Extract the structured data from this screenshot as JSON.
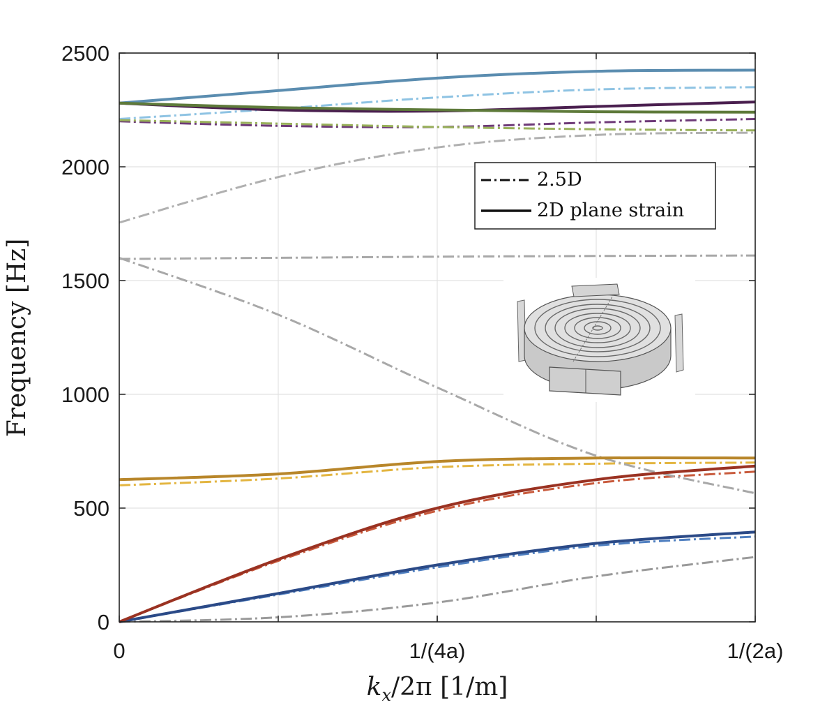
{
  "chart_data": {
    "type": "line",
    "title": "",
    "xlabel": "k_x/2π [1/m]",
    "xlabel_parts": {
      "k": "k",
      "sub": "x",
      "rest": "/2π [1/m]"
    },
    "ylabel": "Frequency [Hz]",
    "xlim": [
      0,
      0.5
    ],
    "ylim": [
      0,
      2500
    ],
    "x_ticks": [
      {
        "value": 0,
        "label": "0"
      },
      {
        "value": 0.25,
        "label": "1/(4a)"
      },
      {
        "value": 0.5,
        "label": "1/(2a)"
      }
    ],
    "x_grid": [
      0.125,
      0.25,
      0.375
    ],
    "y_ticks": [
      {
        "value": 0,
        "label": "0"
      },
      {
        "value": 500,
        "label": "500"
      },
      {
        "value": 1000,
        "label": "1000"
      },
      {
        "value": 1500,
        "label": "1500"
      },
      {
        "value": 2000,
        "label": "2000"
      },
      {
        "value": 2500,
        "label": "2500"
      }
    ],
    "grid": true,
    "legend": {
      "position": "upper-right",
      "entries": [
        {
          "label": "2.5D",
          "style": "dashdot"
        },
        {
          "label": "2D plane strain",
          "style": "solid"
        }
      ]
    },
    "inset": {
      "description": "3D unit-cell model image",
      "position": "middle-right"
    },
    "series": [
      {
        "name": "band-1-2d",
        "model": "2D plane strain",
        "color": "#2b4a87",
        "style": "solid",
        "points": [
          [
            0,
            0
          ],
          [
            0.125,
            125
          ],
          [
            0.25,
            250
          ],
          [
            0.375,
            345
          ],
          [
            0.5,
            395
          ]
        ]
      },
      {
        "name": "band-1-25d",
        "model": "2.5D",
        "color": "#4f7fc0",
        "style": "dashdot",
        "points": [
          [
            0,
            0
          ],
          [
            0.125,
            120
          ],
          [
            0.25,
            240
          ],
          [
            0.375,
            335
          ],
          [
            0.5,
            375
          ]
        ]
      },
      {
        "name": "band-2-2d",
        "model": "2D plane strain",
        "color": "#9a3222",
        "style": "solid",
        "points": [
          [
            0,
            0
          ],
          [
            0.125,
            275
          ],
          [
            0.25,
            500
          ],
          [
            0.375,
            625
          ],
          [
            0.5,
            685
          ]
        ]
      },
      {
        "name": "band-2-25d",
        "model": "2.5D",
        "color": "#c85a3c",
        "style": "dashdot",
        "points": [
          [
            0,
            0
          ],
          [
            0.125,
            268
          ],
          [
            0.25,
            488
          ],
          [
            0.375,
            610
          ],
          [
            0.5,
            660
          ]
        ]
      },
      {
        "name": "band-3-2d",
        "model": "2D plane strain",
        "color": "#b8862a",
        "style": "solid",
        "points": [
          [
            0,
            625
          ],
          [
            0.125,
            650
          ],
          [
            0.25,
            705
          ],
          [
            0.375,
            720
          ],
          [
            0.5,
            720
          ]
        ]
      },
      {
        "name": "band-3-25d",
        "model": "2.5D",
        "color": "#e3b540",
        "style": "dashdot",
        "points": [
          [
            0,
            600
          ],
          [
            0.125,
            630
          ],
          [
            0.25,
            680
          ],
          [
            0.375,
            695
          ],
          [
            0.5,
            700
          ]
        ]
      },
      {
        "name": "band-4-25d",
        "model": "2.5D",
        "color": "#9a9a9a",
        "style": "dashdot",
        "points": [
          [
            0,
            0
          ],
          [
            0.125,
            20
          ],
          [
            0.25,
            85
          ],
          [
            0.375,
            200
          ],
          [
            0.5,
            285
          ]
        ]
      },
      {
        "name": "band-5-25d",
        "model": "2.5D",
        "color": "#a8a8a8",
        "style": "dashdot",
        "points": [
          [
            0,
            1600
          ],
          [
            0.125,
            1350
          ],
          [
            0.25,
            1030
          ],
          [
            0.375,
            730
          ],
          [
            0.5,
            565
          ]
        ]
      },
      {
        "name": "band-6-25d",
        "model": "2.5D",
        "color": "#a8a8a8",
        "style": "dashdot",
        "points": [
          [
            0,
            1595
          ],
          [
            0.125,
            1600
          ],
          [
            0.25,
            1605
          ],
          [
            0.375,
            1608
          ],
          [
            0.5,
            1610
          ]
        ]
      },
      {
        "name": "band-7-25d",
        "model": "2.5D",
        "color": "#b0b0b0",
        "style": "dashdot",
        "points": [
          [
            0,
            1755
          ],
          [
            0.125,
            1955
          ],
          [
            0.25,
            2085
          ],
          [
            0.375,
            2140
          ],
          [
            0.5,
            2150
          ]
        ]
      },
      {
        "name": "band-8-2d",
        "model": "2D plane strain",
        "color": "#5b8db0",
        "style": "solid",
        "points": [
          [
            0,
            2280
          ],
          [
            0.125,
            2335
          ],
          [
            0.25,
            2390
          ],
          [
            0.375,
            2420
          ],
          [
            0.5,
            2425
          ]
        ]
      },
      {
        "name": "band-8-25d",
        "model": "2.5D",
        "color": "#8ec3e3",
        "style": "dashdot",
        "points": [
          [
            0,
            2210
          ],
          [
            0.125,
            2255
          ],
          [
            0.25,
            2305
          ],
          [
            0.375,
            2340
          ],
          [
            0.5,
            2350
          ]
        ]
      },
      {
        "name": "band-9-2d",
        "model": "2D plane strain",
        "color": "#4a1f4f",
        "style": "solid",
        "points": [
          [
            0,
            2280
          ],
          [
            0.125,
            2250
          ],
          [
            0.25,
            2245
          ],
          [
            0.375,
            2265
          ],
          [
            0.5,
            2285
          ]
        ]
      },
      {
        "name": "band-9-25d",
        "model": "2.5D",
        "color": "#6e3a78",
        "style": "dashdot",
        "points": [
          [
            0,
            2200
          ],
          [
            0.125,
            2180
          ],
          [
            0.25,
            2175
          ],
          [
            0.375,
            2195
          ],
          [
            0.5,
            2210
          ]
        ]
      },
      {
        "name": "band-10-2d",
        "model": "2D plane strain",
        "color": "#5e7a3a",
        "style": "solid",
        "points": [
          [
            0,
            2280
          ],
          [
            0.125,
            2260
          ],
          [
            0.25,
            2250
          ],
          [
            0.375,
            2242
          ],
          [
            0.5,
            2240
          ]
        ]
      },
      {
        "name": "band-10-25d",
        "model": "2.5D",
        "color": "#98b05a",
        "style": "dashdot",
        "points": [
          [
            0,
            2205
          ],
          [
            0.125,
            2190
          ],
          [
            0.25,
            2175
          ],
          [
            0.375,
            2165
          ],
          [
            0.5,
            2160
          ]
        ]
      }
    ]
  }
}
